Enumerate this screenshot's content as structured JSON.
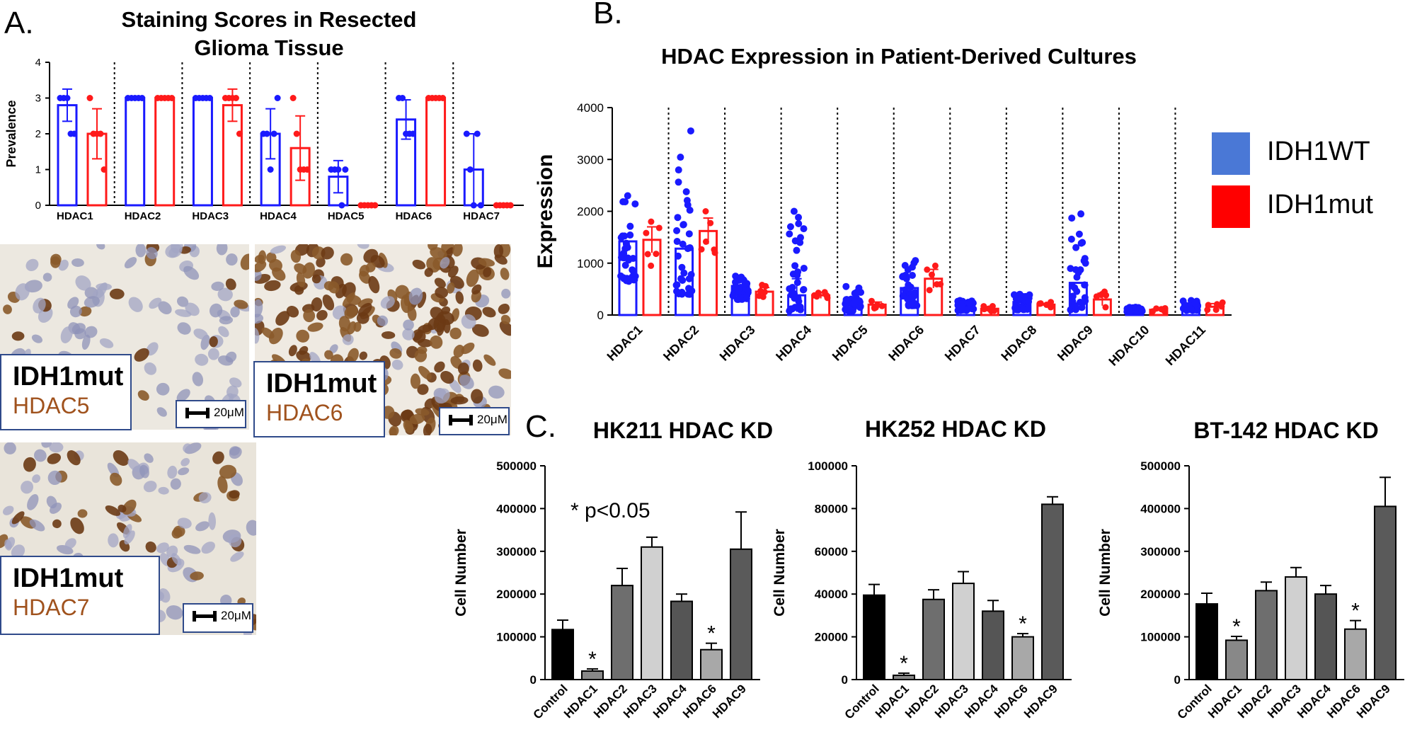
{
  "panels": {
    "a_letter": "A.",
    "b_letter": "B.",
    "c_letter": "C."
  },
  "colors": {
    "wt": "#1a1aff",
    "mut": "#ff1a1a",
    "wt_fill": "#4a78d6",
    "mut_fill": "#ff0000"
  },
  "chart_data": [
    {
      "id": "A",
      "type": "bar",
      "title": "Staining Scores in Resected Glioma Tissue",
      "title_lines": [
        "Staining Scores in Resected",
        "Glioma Tissue"
      ],
      "ylabel": "Prevalence",
      "ylim": [
        0,
        4
      ],
      "yticks": [
        "0",
        "1",
        "2",
        "3",
        "4"
      ],
      "categories": [
        "HDAC1",
        "HDAC2",
        "HDAC3",
        "HDAC4",
        "HDAC5",
        "HDAC6",
        "HDAC7"
      ],
      "series": [
        {
          "name": "IDH1WT",
          "values": [
            2.8,
            3.0,
            3.0,
            2.0,
            0.8,
            2.4,
            1.0
          ],
          "err": [
            0.45,
            0,
            0,
            0.7,
            0.45,
            0.55,
            1.0
          ],
          "points": [
            [
              3,
              3,
              3,
              2,
              2
            ],
            [
              3,
              3,
              3,
              3,
              3
            ],
            [
              3,
              3,
              3,
              3,
              3
            ],
            [
              2,
              2,
              1,
              2,
              3
            ],
            [
              1,
              1,
              1,
              0,
              1
            ],
            [
              3,
              3,
              2,
              2,
              2
            ],
            [
              2,
              1,
              0,
              2,
              0
            ]
          ]
        },
        {
          "name": "IDH1mut",
          "values": [
            2.0,
            3.0,
            2.8,
            1.6,
            0.0,
            3.0,
            0.0
          ],
          "err": [
            0.7,
            0,
            0.45,
            0.9,
            0,
            0,
            0
          ],
          "points": [
            [
              3,
              2,
              2,
              2,
              1
            ],
            [
              3,
              3,
              3,
              3,
              3
            ],
            [
              3,
              3,
              3,
              3,
              2
            ],
            [
              3,
              2,
              1,
              1,
              1
            ],
            [
              0,
              0,
              0,
              0,
              0
            ],
            [
              3,
              3,
              3,
              3,
              3
            ],
            [
              0,
              0,
              0,
              0,
              0
            ]
          ]
        }
      ]
    },
    {
      "id": "B",
      "type": "bar",
      "title": "HDAC Expression in Patient-Derived Cultures",
      "ylabel": "Expression",
      "ylim": [
        0,
        4000
      ],
      "yticks": [
        "0",
        "1000",
        "2000",
        "3000",
        "4000"
      ],
      "categories": [
        "HDAC1",
        "HDAC2",
        "HDAC3",
        "HDAC4",
        "HDAC5",
        "HDAC6",
        "HDAC7",
        "HDAC8",
        "HDAC9",
        "HDAC10",
        "HDAC11"
      ],
      "series": [
        {
          "name": "IDH1WT",
          "values": [
            1420,
            1280,
            560,
            380,
            270,
            520,
            200,
            250,
            620,
            120,
            200
          ],
          "err": [
            0,
            0,
            0,
            320,
            0,
            0,
            0,
            0,
            0,
            0,
            0
          ],
          "spread": [
            [
              650,
              2300
            ],
            [
              400,
              3550
            ],
            [
              300,
              750
            ],
            [
              80,
              2000
            ],
            [
              80,
              550
            ],
            [
              180,
              1050
            ],
            [
              90,
              280
            ],
            [
              100,
              400
            ],
            [
              100,
              1950
            ],
            [
              60,
              150
            ],
            [
              90,
              280
            ]
          ]
        },
        {
          "name": "IDH1mut",
          "values": [
            1450,
            1620,
            450,
            380,
            200,
            700,
            120,
            200,
            300,
            100,
            160
          ],
          "err": [
            250,
            250,
            80,
            60,
            50,
            180,
            40,
            20,
            120,
            20,
            60
          ],
          "spread": [
            [
              950,
              1800
            ],
            [
              1200,
              2000
            ],
            [
              350,
              580
            ],
            [
              330,
              440
            ],
            [
              130,
              270
            ],
            [
              480,
              950
            ],
            [
              80,
              170
            ],
            [
              150,
              250
            ],
            [
              150,
              450
            ],
            [
              70,
              130
            ],
            [
              100,
              240
            ]
          ]
        }
      ],
      "legend": [
        "IDH1WT",
        "IDH1mut"
      ]
    },
    {
      "id": "C1",
      "type": "bar",
      "title": "HK211 HDAC KD",
      "ylabel": "Cell Number",
      "ylim": [
        0,
        500000
      ],
      "yticks": [
        "0",
        "100000",
        "200000",
        "300000",
        "400000",
        "500000"
      ],
      "categories": [
        "Control",
        "HDAC1",
        "HDAC2",
        "HDAC3",
        "HDAC4",
        "HDAC6",
        "HDAC9"
      ],
      "values": [
        117000,
        20000,
        220000,
        310000,
        183000,
        70000,
        305000
      ],
      "err": [
        22000,
        5000,
        40000,
        23000,
        17000,
        15000,
        87000
      ],
      "significant": [
        "",
        "*",
        "",
        "",
        "",
        "*",
        ""
      ],
      "annotation": "* p<0.05"
    },
    {
      "id": "C2",
      "type": "bar",
      "title": "HK252 HDAC KD",
      "ylabel": "Cell Number",
      "ylim": [
        0,
        100000
      ],
      "yticks": [
        "0",
        "20000",
        "40000",
        "60000",
        "80000",
        "100000"
      ],
      "categories": [
        "Control",
        "HDAC1",
        "HDAC2",
        "HDAC3",
        "HDAC4",
        "HDAC6",
        "HDAC9"
      ],
      "values": [
        39500,
        2000,
        37500,
        45000,
        32000,
        20000,
        82000
      ],
      "err": [
        5000,
        1000,
        4500,
        5500,
        5000,
        1500,
        3500
      ],
      "significant": [
        "",
        "*",
        "",
        "",
        "",
        "*",
        ""
      ]
    },
    {
      "id": "C3",
      "type": "bar",
      "title": "BT-142 HDAC KD",
      "ylabel": "Cell Number",
      "ylim": [
        0,
        500000
      ],
      "yticks": [
        "0",
        "100000",
        "200000",
        "300000",
        "400000",
        "500000"
      ],
      "categories": [
        "Control",
        "HDAC1",
        "HDAC2",
        "HDAC3",
        "HDAC4",
        "HDAC6",
        "HDAC9"
      ],
      "values": [
        177000,
        92000,
        208000,
        240000,
        200000,
        118000,
        405000
      ],
      "err": [
        25000,
        9000,
        20000,
        22000,
        20000,
        20000,
        68000
      ],
      "significant": [
        "",
        "*",
        "",
        "",
        "",
        "*",
        ""
      ]
    }
  ],
  "images": {
    "img1": {
      "line1": "IDH1mut",
      "line2": "HDAC5",
      "scale": "20μM"
    },
    "img2": {
      "line1": "IDH1mut",
      "line2": "HDAC6",
      "scale": "20μM"
    },
    "img3": {
      "line1": "IDH1mut",
      "line2": "HDAC7",
      "scale": "20μM"
    }
  }
}
